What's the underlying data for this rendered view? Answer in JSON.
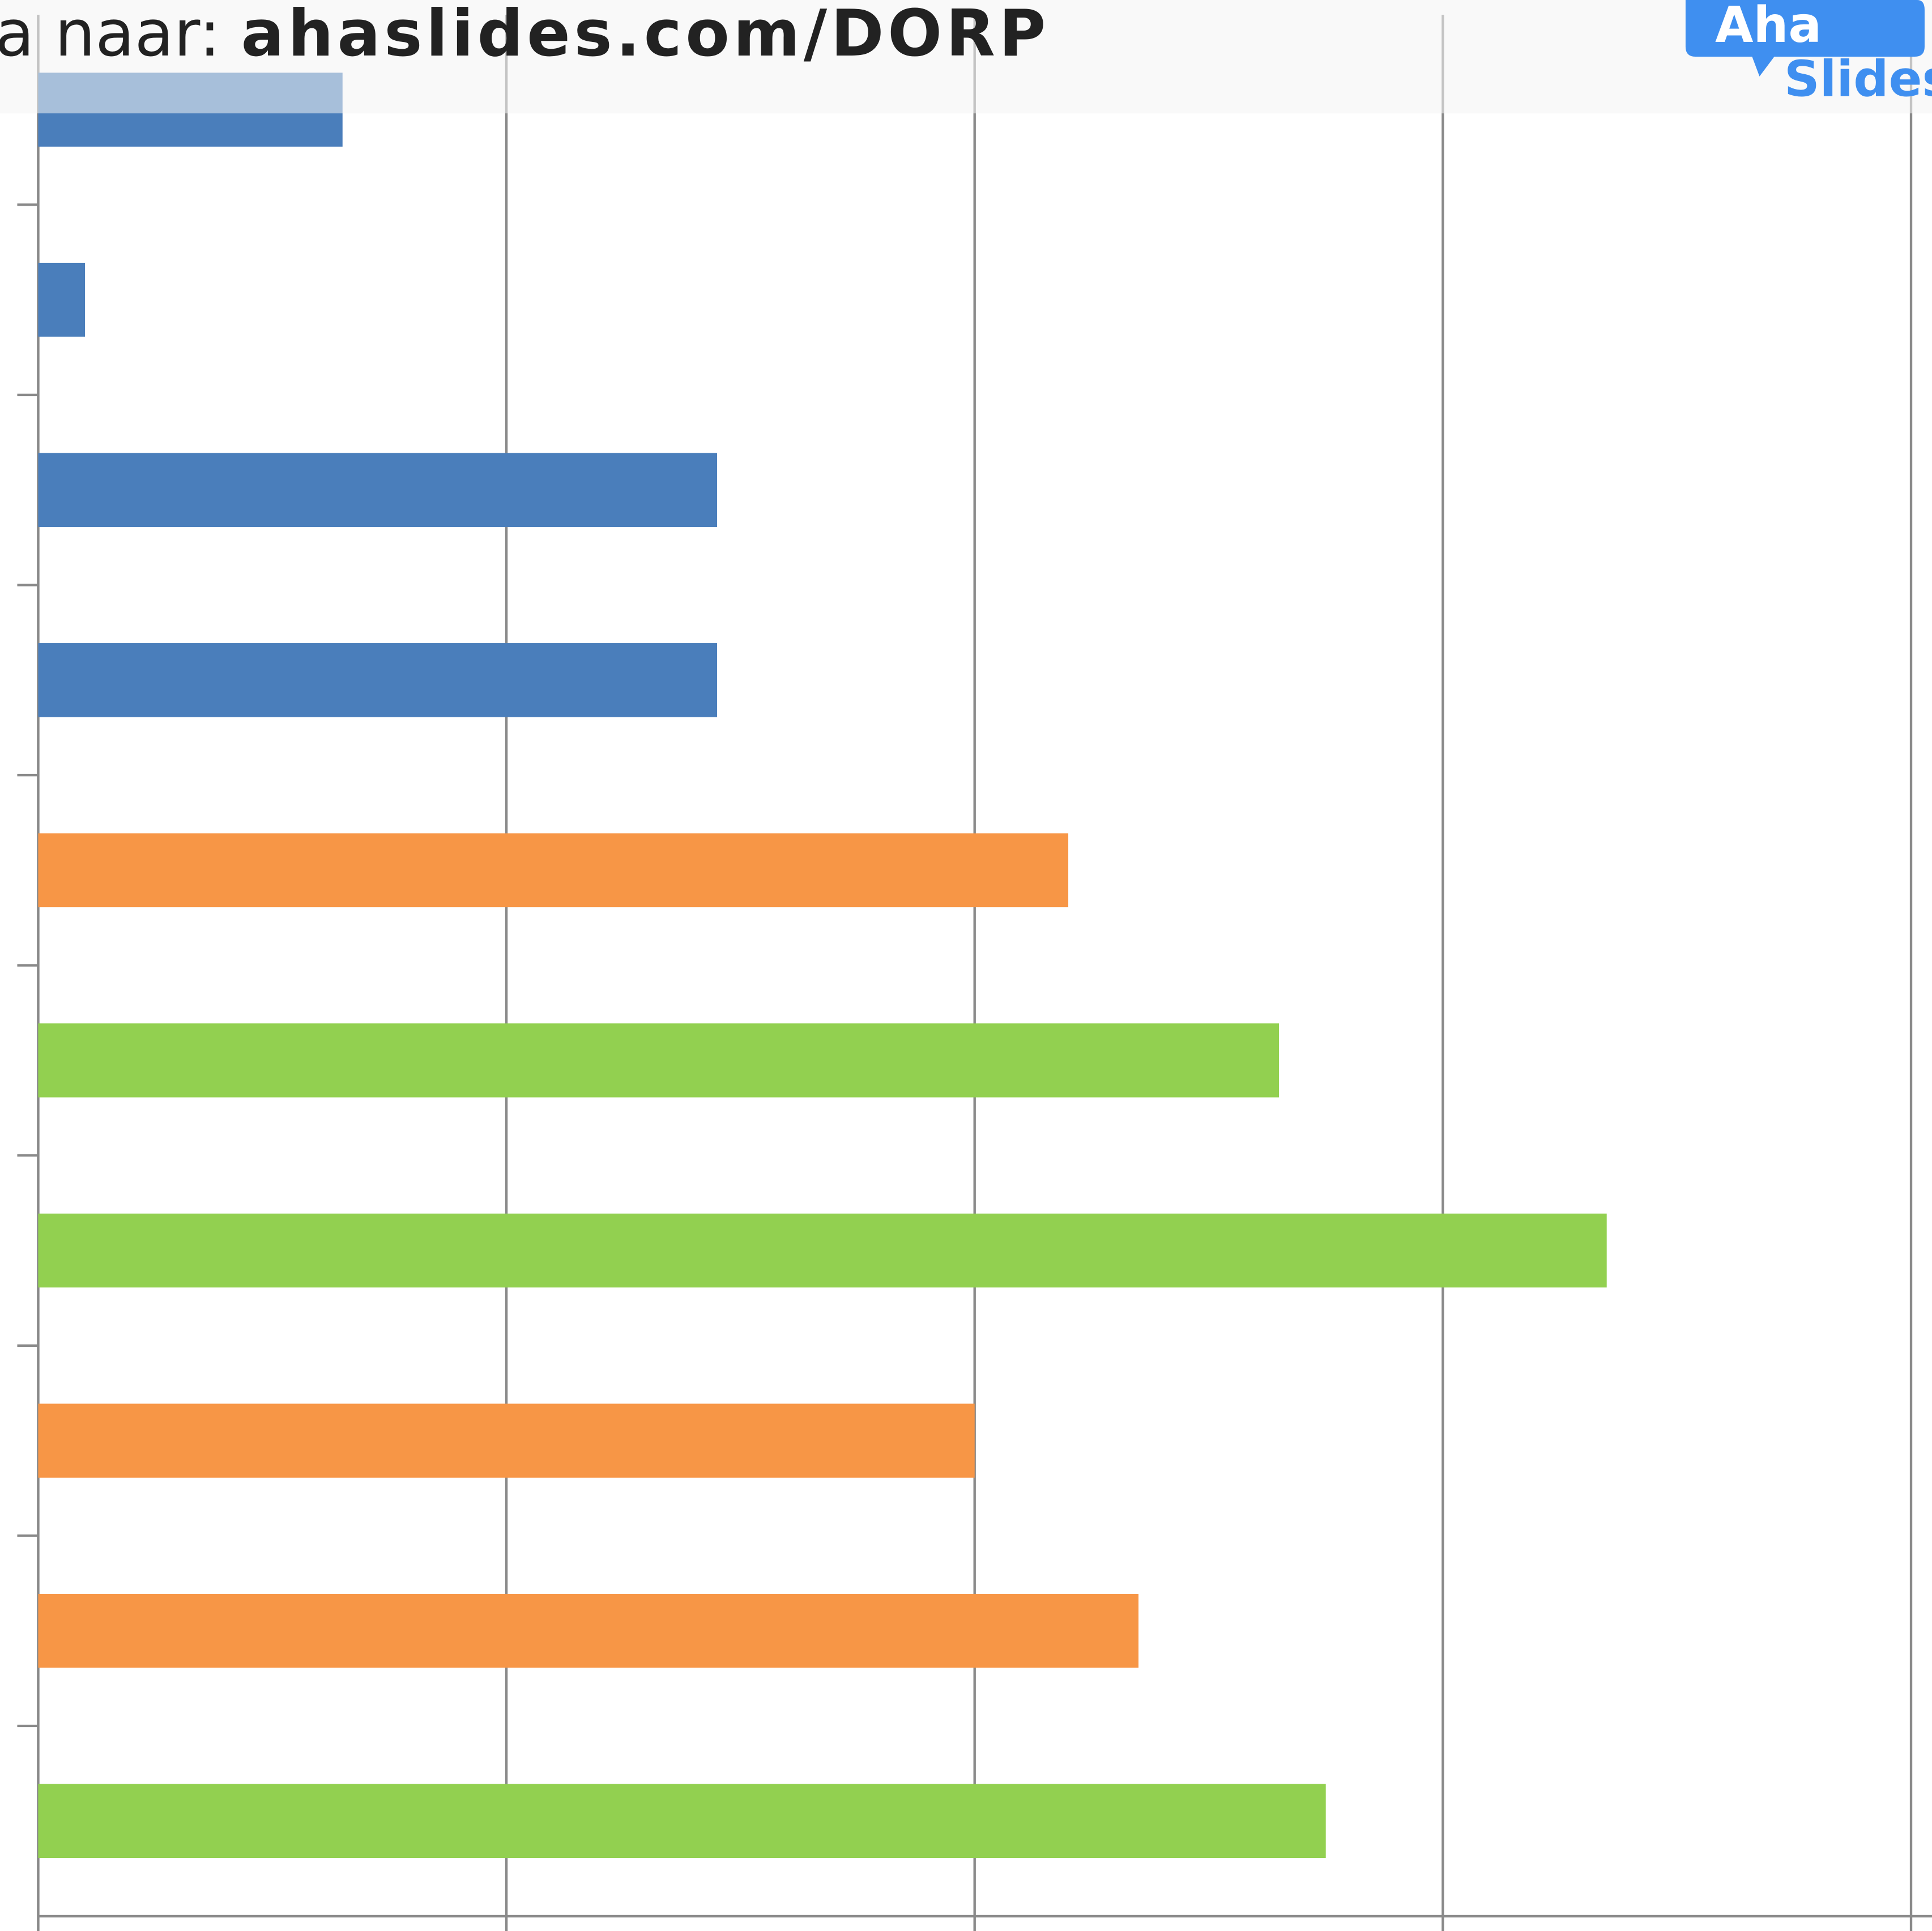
{
  "header": {
    "prefix": "a naar:",
    "url": "ahaslides.com/DORP",
    "logo": [
      "Aha",
      "Slides"
    ]
  },
  "chart_data": {
    "type": "barh",
    "categories": [
      null,
      null,
      null,
      null,
      null,
      null,
      null,
      null,
      null,
      null
    ],
    "values": [
      0.65,
      0.1,
      1.45,
      1.45,
      2.2,
      2.65,
      3.35,
      2.0,
      2.35,
      2.75
    ],
    "colors": [
      "#4a7ebb",
      "#4a7ebb",
      "#4a7ebb",
      "#4a7ebb",
      "#f79646",
      "#92d050",
      "#92d050",
      "#f79646",
      "#f79646",
      "#92d050"
    ],
    "xlim": [
      0,
      4
    ],
    "xticks": [
      0,
      1,
      2,
      3,
      4
    ],
    "grid": true
  }
}
